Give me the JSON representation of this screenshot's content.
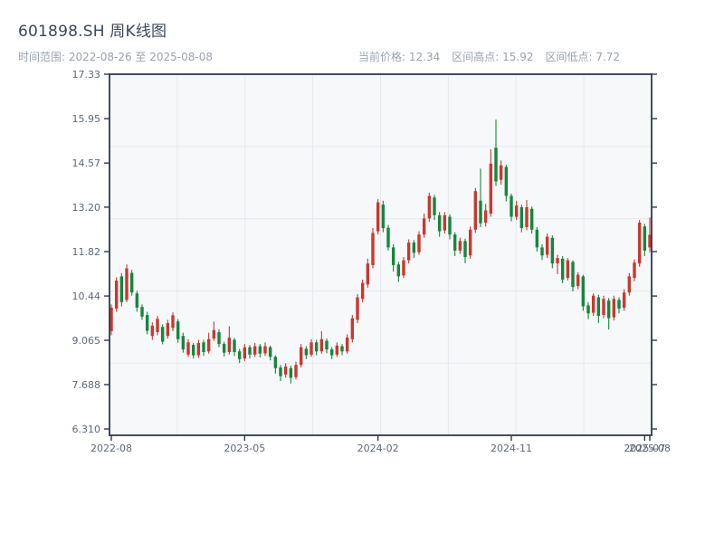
{
  "header": {
    "title": "601898.SH 周K线图",
    "range_label": "时间范围: 2022-08-26 至 2025-08-08",
    "stats": [
      {
        "label": "当前价格:",
        "value": "12.34"
      },
      {
        "label": "区间高点:",
        "value": "15.92"
      },
      {
        "label": "区间低点:",
        "value": "7.72"
      }
    ]
  },
  "colors": {
    "up": "#c8382f",
    "down": "#15873c",
    "axis": "#2e3a4e",
    "grid": "#e7e9ee",
    "plot_bg": "#f7f8fa",
    "tick_label": "#5e6979"
  },
  "chart_data": {
    "type": "candlestick",
    "title": "601898.SH 周K线图",
    "period": "weekly",
    "date_range": [
      "2022-08-26",
      "2025-08-08"
    ],
    "current_price": 12.34,
    "period_high": 15.92,
    "period_low": 7.72,
    "ylim": [
      6.31,
      17.33
    ],
    "y_ticks": [
      {
        "v": 17.33,
        "label": "17.33"
      },
      {
        "v": 15.95,
        "label": "15.95"
      },
      {
        "v": 14.57,
        "label": "14.57"
      },
      {
        "v": 13.2,
        "label": "13.20"
      },
      {
        "v": 11.82,
        "label": "11.82"
      },
      {
        "v": 10.44,
        "label": "10.44"
      },
      {
        "v": 9.065,
        "label": "9.065"
      },
      {
        "v": 7.688,
        "label": "7.688"
      },
      {
        "v": 6.31,
        "label": "6.310"
      }
    ],
    "x_ticks": [
      {
        "index": 0,
        "label": "2022-08"
      },
      {
        "index": 26,
        "label": "2023-05"
      },
      {
        "index": 52,
        "label": "2024-02"
      },
      {
        "index": 78,
        "label": "2024-11"
      },
      {
        "index": 104,
        "label": "2025-07"
      },
      {
        "index": 105,
        "label": "2025-08"
      }
    ],
    "candles": [
      [
        9.35,
        10.18,
        9.22,
        10.08
      ],
      [
        10.05,
        11.02,
        9.95,
        10.92
      ],
      [
        11.05,
        11.15,
        10.12,
        10.25
      ],
      [
        10.32,
        11.42,
        10.25,
        11.3
      ],
      [
        11.16,
        11.25,
        10.45,
        10.55
      ],
      [
        10.52,
        10.6,
        9.95,
        10.08
      ],
      [
        10.1,
        10.18,
        9.7,
        9.8
      ],
      [
        9.85,
        9.95,
        9.25,
        9.36
      ],
      [
        9.2,
        9.62,
        9.08,
        9.52
      ],
      [
        9.32,
        9.82,
        9.22,
        9.73
      ],
      [
        9.48,
        9.56,
        8.94,
        9.02
      ],
      [
        9.2,
        9.7,
        9.12,
        9.6
      ],
      [
        9.45,
        9.93,
        9.35,
        9.84
      ],
      [
        9.65,
        9.72,
        8.99,
        9.1
      ],
      [
        9.2,
        9.3,
        8.68,
        8.78
      ],
      [
        8.62,
        9.1,
        8.55,
        9.0
      ],
      [
        8.92,
        8.98,
        8.5,
        8.6
      ],
      [
        8.6,
        9.08,
        8.52,
        8.98
      ],
      [
        9.0,
        9.08,
        8.58,
        8.7
      ],
      [
        8.72,
        9.3,
        8.65,
        9.1
      ],
      [
        9.12,
        9.65,
        9.05,
        9.38
      ],
      [
        9.32,
        9.4,
        8.85,
        8.95
      ],
      [
        8.95,
        9.02,
        8.56,
        8.68
      ],
      [
        8.7,
        9.5,
        8.62,
        9.15
      ],
      [
        9.08,
        9.14,
        8.58,
        8.7
      ],
      [
        8.72,
        8.8,
        8.36,
        8.48
      ],
      [
        8.5,
        8.95,
        8.42,
        8.85
      ],
      [
        8.85,
        8.92,
        8.5,
        8.62
      ],
      [
        8.62,
        8.98,
        8.55,
        8.88
      ],
      [
        8.88,
        8.95,
        8.53,
        8.65
      ],
      [
        8.66,
        9.0,
        8.58,
        8.88
      ],
      [
        8.85,
        8.9,
        8.44,
        8.55
      ],
      [
        8.55,
        8.6,
        8.03,
        8.2
      ],
      [
        8.22,
        8.3,
        7.8,
        7.95
      ],
      [
        8.0,
        8.35,
        7.9,
        8.25
      ],
      [
        8.2,
        8.28,
        7.72,
        7.9
      ],
      [
        7.92,
        8.4,
        7.85,
        8.3
      ],
      [
        8.3,
        8.95,
        8.22,
        8.85
      ],
      [
        8.8,
        8.88,
        8.48,
        8.6
      ],
      [
        8.62,
        9.1,
        8.55,
        9.0
      ],
      [
        9.0,
        9.08,
        8.6,
        8.72
      ],
      [
        8.72,
        9.35,
        8.65,
        9.1
      ],
      [
        9.05,
        9.12,
        8.66,
        8.78
      ],
      [
        8.78,
        8.85,
        8.48,
        8.6
      ],
      [
        8.62,
        9.0,
        8.55,
        8.9
      ],
      [
        8.88,
        8.95,
        8.6,
        8.72
      ],
      [
        8.72,
        9.25,
        8.65,
        9.15
      ],
      [
        9.1,
        9.85,
        9.0,
        9.75
      ],
      [
        9.7,
        10.5,
        9.6,
        10.4
      ],
      [
        10.35,
        10.95,
        10.25,
        10.85
      ],
      [
        10.8,
        11.6,
        10.7,
        11.45
      ],
      [
        11.4,
        12.55,
        11.3,
        12.4
      ],
      [
        12.45,
        13.45,
        12.35,
        13.35
      ],
      [
        13.28,
        13.4,
        12.42,
        12.55
      ],
      [
        12.56,
        12.65,
        11.85,
        11.95
      ],
      [
        11.95,
        12.05,
        11.2,
        11.4
      ],
      [
        11.42,
        11.5,
        10.88,
        11.05
      ],
      [
        11.08,
        11.65,
        11.0,
        11.55
      ],
      [
        11.55,
        12.2,
        11.45,
        12.1
      ],
      [
        12.1,
        12.18,
        11.62,
        11.78
      ],
      [
        11.8,
        12.45,
        11.72,
        12.35
      ],
      [
        12.35,
        13.0,
        12.25,
        12.85
      ],
      [
        12.85,
        13.65,
        12.75,
        13.55
      ],
      [
        13.5,
        13.58,
        12.8,
        12.95
      ],
      [
        12.95,
        13.05,
        12.28,
        12.45
      ],
      [
        12.48,
        13.05,
        12.38,
        12.95
      ],
      [
        12.9,
        12.98,
        12.2,
        12.35
      ],
      [
        12.35,
        12.42,
        11.68,
        11.85
      ],
      [
        11.85,
        12.25,
        11.75,
        12.15
      ],
      [
        12.15,
        12.22,
        11.46,
        11.65
      ],
      [
        11.7,
        12.6,
        11.6,
        12.5
      ],
      [
        12.5,
        13.8,
        12.4,
        13.7
      ],
      [
        13.4,
        14.4,
        12.58,
        12.7
      ],
      [
        12.72,
        13.3,
        12.6,
        13.1
      ],
      [
        13.0,
        15.0,
        12.9,
        14.55
      ],
      [
        15.05,
        15.92,
        13.86,
        14.0
      ],
      [
        14.05,
        14.65,
        13.9,
        14.5
      ],
      [
        14.45,
        14.52,
        13.38,
        13.55
      ],
      [
        13.55,
        13.62,
        12.76,
        12.9
      ],
      [
        12.9,
        13.4,
        12.8,
        13.25
      ],
      [
        13.2,
        13.28,
        12.42,
        12.55
      ],
      [
        12.58,
        13.42,
        12.48,
        13.2
      ],
      [
        13.15,
        13.22,
        12.38,
        12.5
      ],
      [
        12.5,
        12.58,
        11.82,
        11.95
      ],
      [
        11.95,
        12.05,
        11.56,
        11.7
      ],
      [
        11.72,
        12.38,
        11.62,
        12.28
      ],
      [
        12.25,
        12.32,
        11.3,
        11.45
      ],
      [
        11.45,
        11.72,
        11.12,
        11.62
      ],
      [
        11.6,
        11.68,
        10.84,
        10.95
      ],
      [
        11.0,
        11.62,
        10.92,
        11.55
      ],
      [
        11.5,
        11.55,
        10.58,
        10.72
      ],
      [
        10.75,
        11.18,
        10.65,
        11.1
      ],
      [
        11.05,
        11.1,
        9.98,
        10.12
      ],
      [
        10.15,
        10.25,
        9.72,
        9.9
      ],
      [
        9.92,
        10.52,
        9.82,
        10.45
      ],
      [
        10.4,
        10.48,
        9.6,
        9.82
      ],
      [
        9.85,
        10.45,
        9.75,
        10.35
      ],
      [
        10.3,
        10.38,
        9.4,
        9.75
      ],
      [
        9.78,
        10.45,
        9.68,
        10.35
      ],
      [
        10.32,
        10.4,
        9.9,
        10.05
      ],
      [
        10.08,
        10.65,
        9.98,
        10.55
      ],
      [
        10.55,
        11.15,
        10.45,
        11.05
      ],
      [
        11.0,
        11.58,
        10.9,
        11.48
      ],
      [
        11.45,
        12.8,
        11.35,
        12.72
      ],
      [
        12.6,
        12.68,
        11.68,
        11.85
      ],
      [
        11.95,
        12.88,
        11.8,
        12.34
      ]
    ]
  }
}
